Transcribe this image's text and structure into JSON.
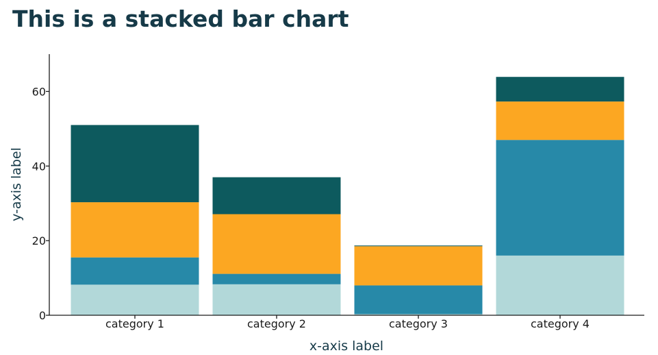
{
  "chart_data": {
    "type": "bar",
    "stacked": true,
    "title": "This is a stacked bar chart",
    "xlabel": "x-axis label",
    "ylabel": "y-axis label",
    "ylim": [
      0,
      70
    ],
    "yticks": [
      0,
      20,
      40,
      60
    ],
    "grid": false,
    "categories": [
      "category 1",
      "category 2",
      "category 3",
      "category 4"
    ],
    "series": [
      {
        "color": "#b2d8d9",
        "values": [
          8.2,
          8.3,
          0.3,
          16.0
        ]
      },
      {
        "color": "#2789a8",
        "values": [
          7.3,
          2.8,
          7.7,
          31.0
        ]
      },
      {
        "color": "#fca722",
        "values": [
          14.8,
          16.0,
          10.5,
          10.3
        ]
      },
      {
        "color": "#0d5a5e",
        "values": [
          20.7,
          9.9,
          0.2,
          6.6
        ]
      }
    ]
  }
}
